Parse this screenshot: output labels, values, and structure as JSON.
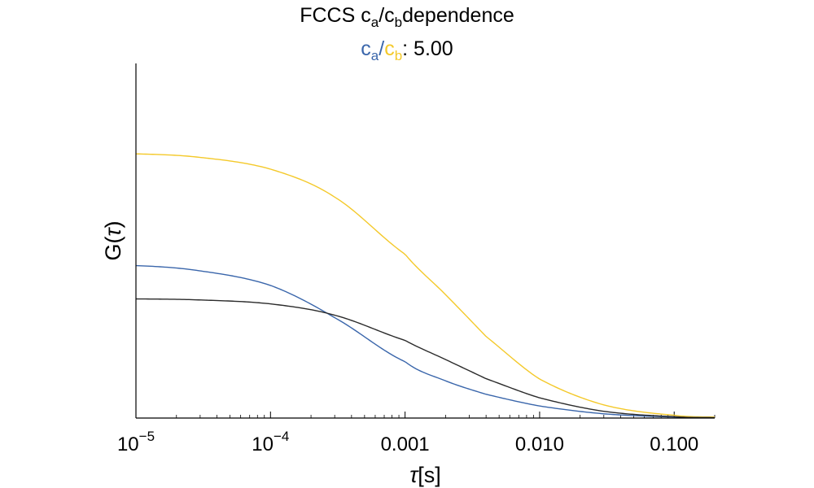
{
  "header": {
    "title_main": "FCCS c",
    "title_sub_a": "a",
    "title_slash": "/c",
    "title_sub_b": "b",
    "title_rest": "dependence",
    "ratio_c1": "c",
    "ratio_sub_a": "a",
    "ratio_slash": "/",
    "ratio_c2": "c",
    "ratio_sub_b": "b",
    "ratio_label_suffix": ": 5.00"
  },
  "colors": {
    "blue": "#3a66ab",
    "yellow": "#f4c92a",
    "black": "#2b2b2b",
    "axis": "#000000"
  },
  "chart_data": {
    "type": "line",
    "xscale": "log",
    "xlim": [
      1e-05,
      0.2
    ],
    "xticks": [
      {
        "value": 1e-05,
        "base": "10",
        "exp": "−5"
      },
      {
        "value": 0.0001,
        "base": "10",
        "exp": "−4"
      },
      {
        "value": 0.001,
        "label": "0.001"
      },
      {
        "value": 0.01,
        "label": "0.010"
      },
      {
        "value": 0.1,
        "label": "0.100"
      }
    ],
    "xlabel_var": "τ",
    "xlabel_unit": "[s]",
    "ylabel_pre": "G(",
    "ylabel_var": "τ",
    "ylabel_post": ")",
    "ylim": [
      0,
      1
    ],
    "series": [
      {
        "color_key": "yellow",
        "x": [
          1e-05,
          3e-05,
          0.0001,
          0.0003,
          0.001,
          0.002,
          0.004,
          0.01,
          0.03,
          0.1,
          0.2
        ],
        "y": [
          0.745,
          0.735,
          0.702,
          0.623,
          0.462,
          0.348,
          0.23,
          0.11,
          0.037,
          0.008,
          0.003
        ]
      },
      {
        "color_key": "blue",
        "x": [
          1e-05,
          3e-05,
          0.0001,
          0.0003,
          0.001,
          0.002,
          0.004,
          0.01,
          0.03,
          0.1,
          0.2
        ],
        "y": [
          0.43,
          0.415,
          0.374,
          0.283,
          0.159,
          0.105,
          0.067,
          0.034,
          0.012,
          0.003,
          0.001
        ]
      },
      {
        "color_key": "black",
        "x": [
          1e-05,
          3e-05,
          0.0001,
          0.0003,
          0.001,
          0.002,
          0.004,
          0.01,
          0.03,
          0.1,
          0.2
        ],
        "y": [
          0.336,
          0.333,
          0.322,
          0.29,
          0.219,
          0.165,
          0.111,
          0.057,
          0.019,
          0.004,
          0.001
        ]
      }
    ]
  }
}
